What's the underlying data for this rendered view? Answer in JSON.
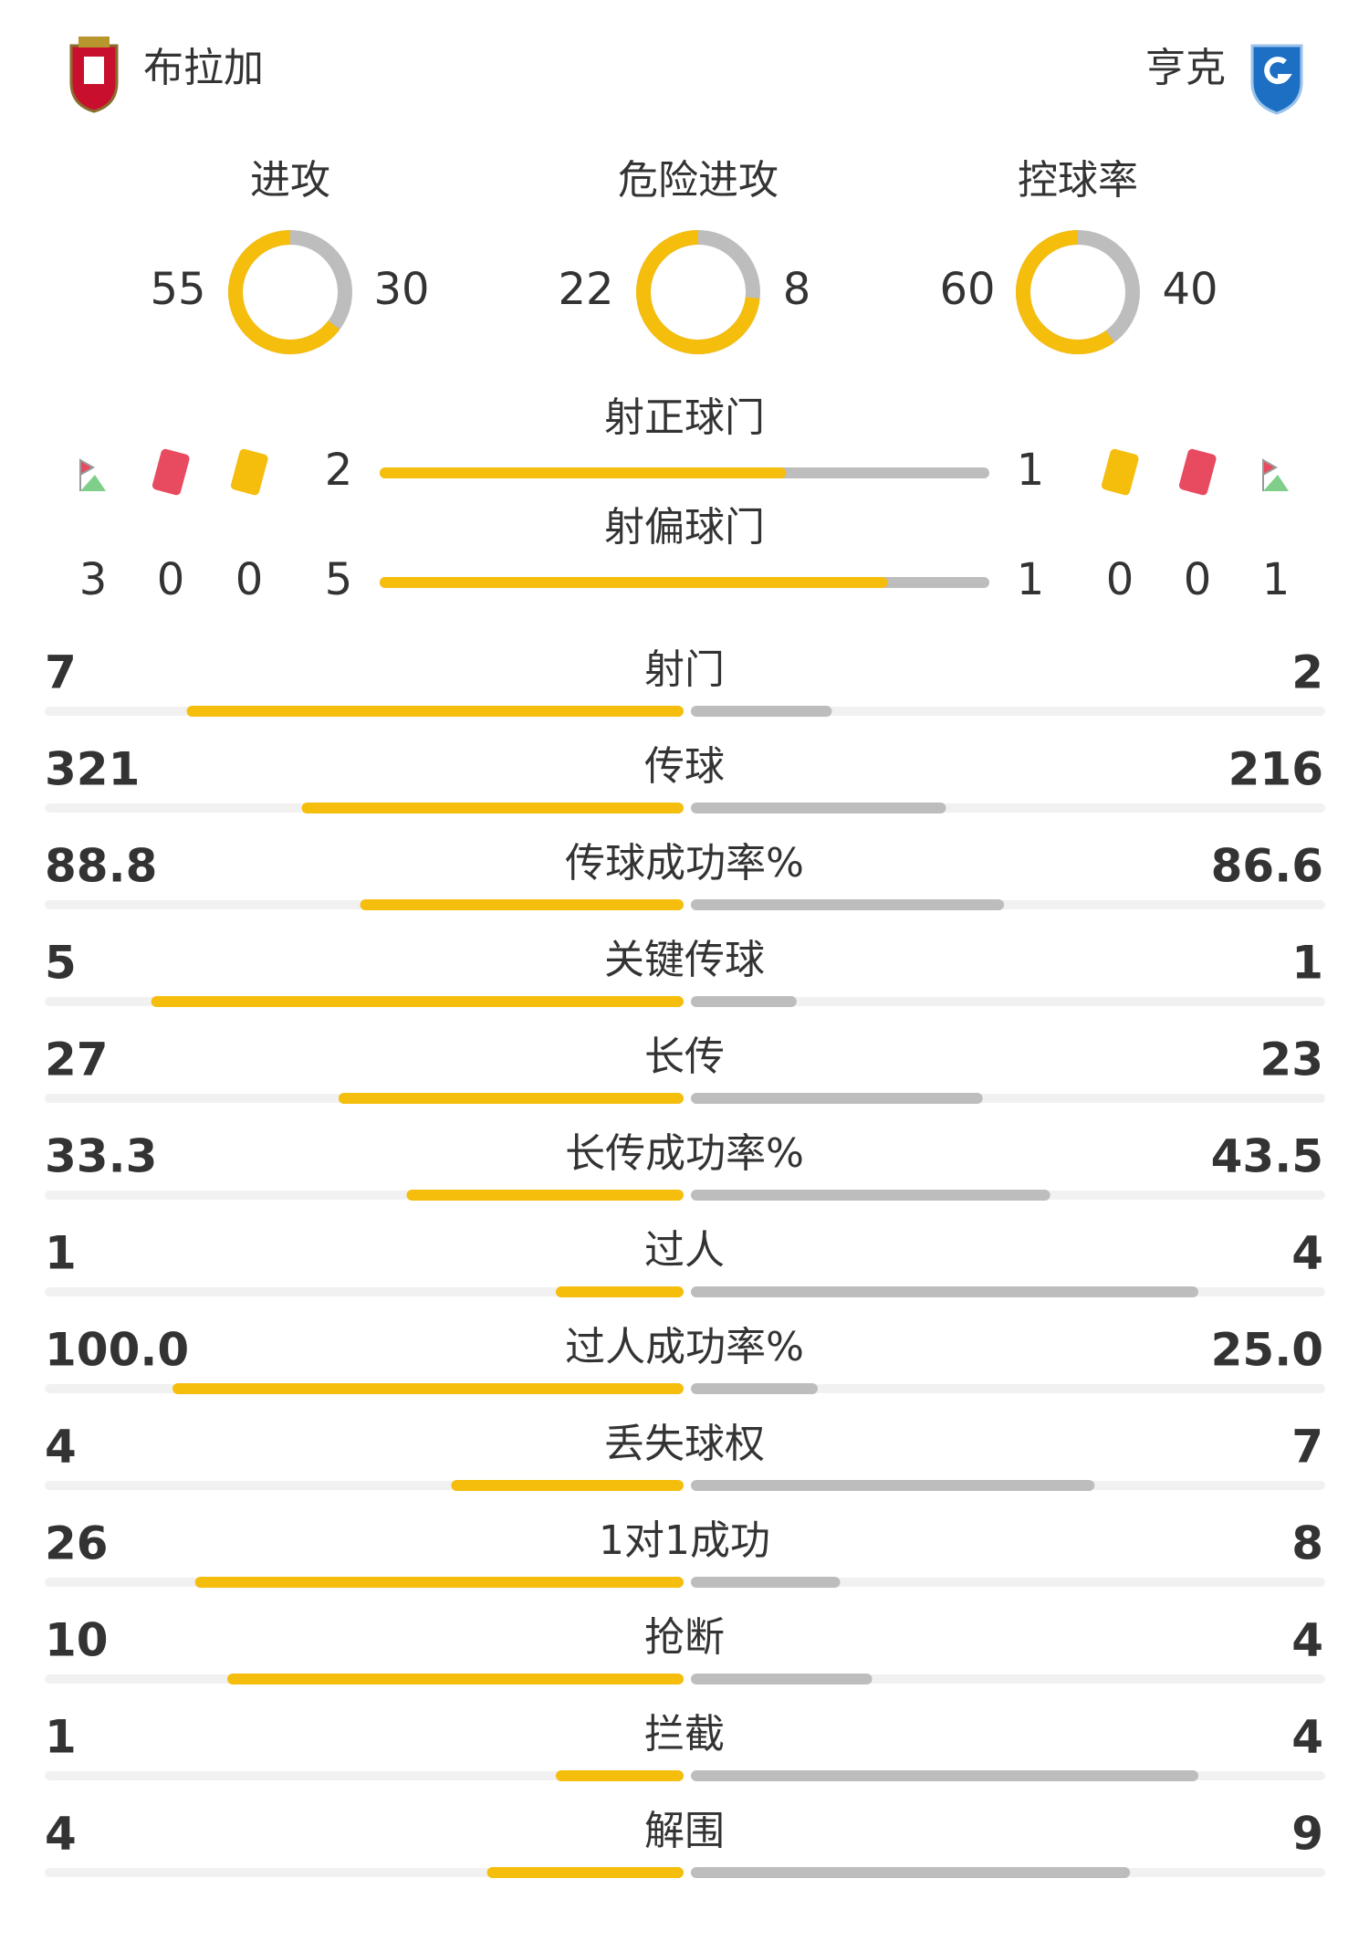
{
  "home": {
    "name": "布拉加"
  },
  "away": {
    "name": "亨克"
  },
  "rings": [
    {
      "label": "进攻",
      "home": 55,
      "away": 30
    },
    {
      "label": "危险进攻",
      "home": 22,
      "away": 8
    },
    {
      "label": "控球率",
      "home": 60,
      "away": 40
    }
  ],
  "shots_on": {
    "label": "射正球门",
    "home": 2,
    "away": 1
  },
  "shots_off": {
    "label": "射偏球门",
    "home": 5,
    "away": 1
  },
  "cards": {
    "home": {
      "corners": 3,
      "red": 0,
      "yellow": 0
    },
    "away": {
      "yellow": 0,
      "red": 0,
      "corners": 1
    }
  },
  "stats": [
    {
      "label": "射门",
      "home": "7",
      "away": "2"
    },
    {
      "label": "传球",
      "home": "321",
      "away": "216"
    },
    {
      "label": "传球成功率%",
      "home": "88.8",
      "away": "86.6"
    },
    {
      "label": "关键传球",
      "home": "5",
      "away": "1"
    },
    {
      "label": "长传",
      "home": "27",
      "away": "23"
    },
    {
      "label": "长传成功率%",
      "home": "33.3",
      "away": "43.5"
    },
    {
      "label": "过人",
      "home": "1",
      "away": "4"
    },
    {
      "label": "过人成功率%",
      "home": "100.0",
      "away": "25.0"
    },
    {
      "label": "丢失球权",
      "home": "4",
      "away": "7"
    },
    {
      "label": "1对1成功",
      "home": "26",
      "away": "8"
    },
    {
      "label": "抢断",
      "home": "10",
      "away": "4"
    },
    {
      "label": "拦截",
      "home": "1",
      "away": "4"
    },
    {
      "label": "解围",
      "home": "4",
      "away": "9"
    }
  ]
}
